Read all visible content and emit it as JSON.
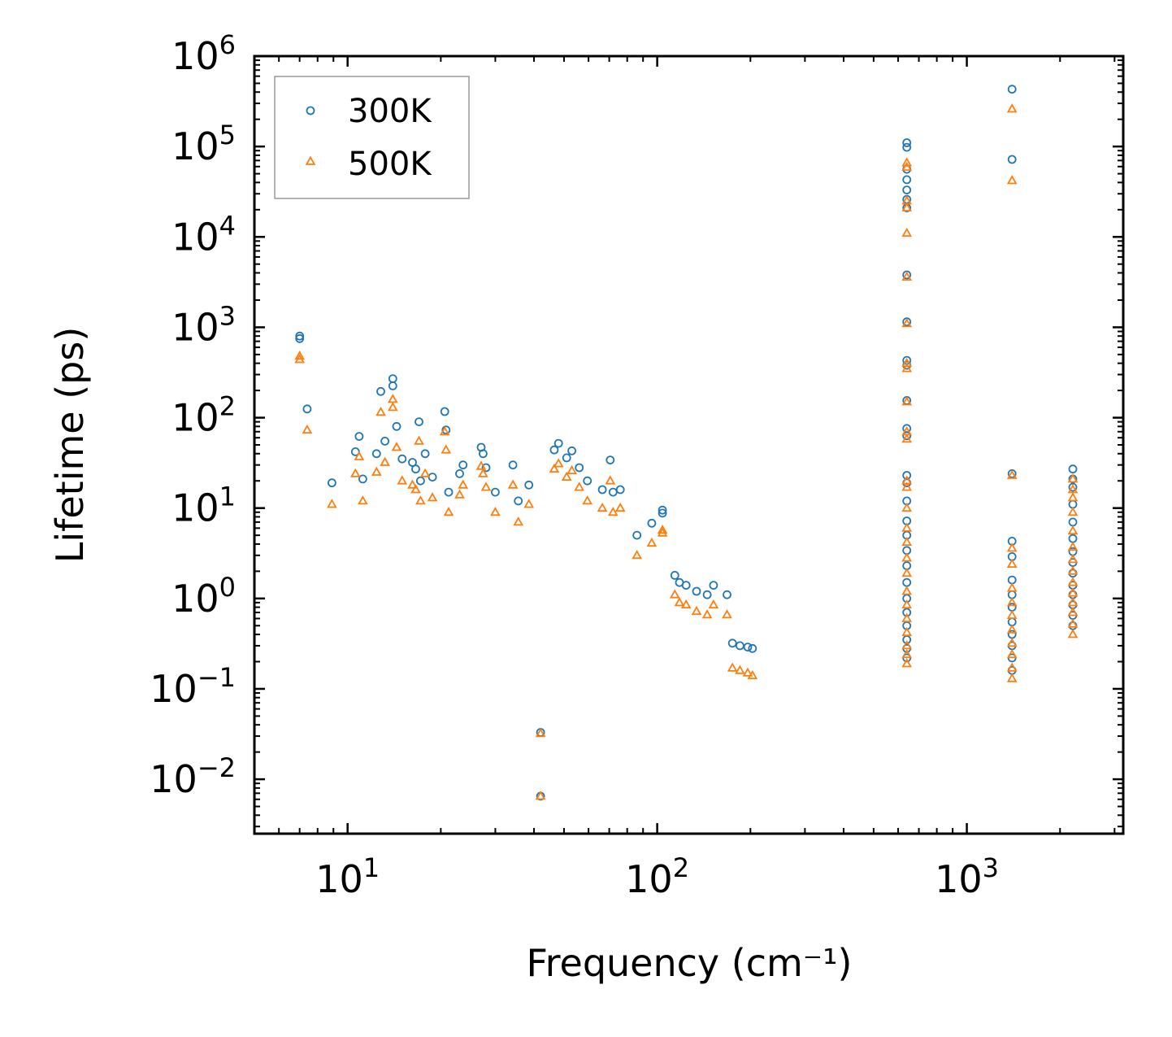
{
  "chart_data": {
    "type": "scatter",
    "xscale": "log",
    "yscale": "log",
    "xlim": [
      5,
      3200
    ],
    "ylim": [
      0.0025,
      1000000
    ],
    "xlabel": "Frequency (cm⁻¹)",
    "ylabel": "Lifetime (ps)",
    "x_ticks": [
      {
        "value": 10,
        "base": "10",
        "exp": "1"
      },
      {
        "value": 100,
        "base": "10",
        "exp": "2"
      },
      {
        "value": 1000,
        "base": "10",
        "exp": "3"
      }
    ],
    "y_ticks": [
      {
        "value": 0.01,
        "base": "10",
        "exp": "−2"
      },
      {
        "value": 0.1,
        "base": "10",
        "exp": "−1"
      },
      {
        "value": 1,
        "base": "10",
        "exp": "0"
      },
      {
        "value": 10,
        "base": "10",
        "exp": "1"
      },
      {
        "value": 100,
        "base": "10",
        "exp": "2"
      },
      {
        "value": 1000,
        "base": "10",
        "exp": "3"
      },
      {
        "value": 10000,
        "base": "10",
        "exp": "4"
      },
      {
        "value": 100000,
        "base": "10",
        "exp": "5"
      },
      {
        "value": 1000000,
        "base": "10",
        "exp": "6"
      }
    ],
    "legend": {
      "placement": "upper-left"
    },
    "series": [
      {
        "name": "300K",
        "marker": "circle",
        "color": "#1f77b4",
        "points": [
          [
            7.0,
            800
          ],
          [
            7.0,
            750
          ],
          [
            7.4,
            125
          ],
          [
            8.9,
            19
          ],
          [
            10.6,
            42
          ],
          [
            10.9,
            62
          ],
          [
            11.2,
            21
          ],
          [
            12.4,
            40
          ],
          [
            12.8,
            195
          ],
          [
            13.2,
            55
          ],
          [
            14.0,
            270
          ],
          [
            14.0,
            225
          ],
          [
            14.4,
            80
          ],
          [
            15.0,
            35
          ],
          [
            16.2,
            32
          ],
          [
            16.6,
            27
          ],
          [
            17.0,
            90
          ],
          [
            17.2,
            20
          ],
          [
            17.8,
            40
          ],
          [
            18.8,
            22
          ],
          [
            20.6,
            117
          ],
          [
            20.8,
            73
          ],
          [
            21.2,
            15
          ],
          [
            23.0,
            24
          ],
          [
            23.6,
            30
          ],
          [
            27.0,
            47
          ],
          [
            27.4,
            40
          ],
          [
            28.0,
            28
          ],
          [
            30.0,
            15
          ],
          [
            34.2,
            30
          ],
          [
            35.6,
            12
          ],
          [
            38.5,
            18
          ],
          [
            42.0,
            0.033
          ],
          [
            42.0,
            0.0065
          ],
          [
            46.5,
            44
          ],
          [
            48.0,
            52
          ],
          [
            51.0,
            36
          ],
          [
            53.0,
            43
          ],
          [
            56.0,
            28
          ],
          [
            59.5,
            20
          ],
          [
            66.5,
            16
          ],
          [
            70.5,
            34
          ],
          [
            72.0,
            15
          ],
          [
            76.0,
            16
          ],
          [
            86.0,
            5
          ],
          [
            96.0,
            6.8
          ],
          [
            104.0,
            9.5
          ],
          [
            104.0,
            8.8
          ],
          [
            114.0,
            1.8
          ],
          [
            118.0,
            1.5
          ],
          [
            124.0,
            1.4
          ],
          [
            134.0,
            1.2
          ],
          [
            145.0,
            1.1
          ],
          [
            152.0,
            1.4
          ],
          [
            168.0,
            1.1
          ],
          [
            175.0,
            0.32
          ],
          [
            185.0,
            0.3
          ],
          [
            196.0,
            0.29
          ],
          [
            203.0,
            0.28
          ],
          [
            640.0,
            110000
          ],
          [
            640.0,
            98000
          ],
          [
            640.0,
            56000
          ],
          [
            640.0,
            43000
          ],
          [
            640.0,
            33000
          ],
          [
            640.0,
            26000
          ],
          [
            640.0,
            21000
          ],
          [
            640.0,
            3800
          ],
          [
            640.0,
            1150
          ],
          [
            640.0,
            430
          ],
          [
            640.0,
            380
          ],
          [
            640.0,
            155
          ],
          [
            640.0,
            76
          ],
          [
            640.0,
            63
          ],
          [
            640.0,
            23
          ],
          [
            640.0,
            19
          ],
          [
            640.0,
            12
          ],
          [
            640.0,
            7.2
          ],
          [
            640.0,
            5
          ],
          [
            640.0,
            3.4
          ],
          [
            640.0,
            2.3
          ],
          [
            640.0,
            1.5
          ],
          [
            640.0,
            1
          ],
          [
            640.0,
            0.7
          ],
          [
            640.0,
            0.5
          ],
          [
            640.0,
            0.35
          ],
          [
            640.0,
            0.28
          ],
          [
            640.0,
            0.22
          ],
          [
            1400.0,
            430000
          ],
          [
            1400.0,
            72000
          ],
          [
            1400.0,
            24
          ],
          [
            1400.0,
            4.3
          ],
          [
            1400.0,
            2.9
          ],
          [
            1400.0,
            1.6
          ],
          [
            1400.0,
            1.1
          ],
          [
            1400.0,
            0.8
          ],
          [
            1400.0,
            0.55
          ],
          [
            1400.0,
            0.4
          ],
          [
            1400.0,
            0.3
          ],
          [
            1400.0,
            0.22
          ],
          [
            1400.0,
            0.16
          ],
          [
            2200.0,
            27
          ],
          [
            2200.0,
            21
          ],
          [
            2200.0,
            17
          ],
          [
            2200.0,
            11
          ],
          [
            2200.0,
            7
          ],
          [
            2200.0,
            4.6
          ],
          [
            2200.0,
            3.3
          ],
          [
            2200.0,
            2.5
          ],
          [
            2200.0,
            1.9
          ],
          [
            2200.0,
            1.4
          ],
          [
            2200.0,
            1.1
          ],
          [
            2200.0,
            0.85
          ],
          [
            2200.0,
            0.65
          ],
          [
            2200.0,
            0.5
          ]
        ]
      },
      {
        "name": "500K",
        "marker": "triangle",
        "color": "#ff7f0e",
        "points": [
          [
            7.0,
            480
          ],
          [
            7.0,
            440
          ],
          [
            7.4,
            73
          ],
          [
            8.9,
            11
          ],
          [
            10.6,
            24
          ],
          [
            10.9,
            37
          ],
          [
            11.2,
            12
          ],
          [
            12.4,
            25
          ],
          [
            12.8,
            115
          ],
          [
            13.2,
            32
          ],
          [
            14.0,
            160
          ],
          [
            14.0,
            130
          ],
          [
            14.4,
            47
          ],
          [
            15.0,
            20
          ],
          [
            16.2,
            18
          ],
          [
            16.6,
            16
          ],
          [
            17.0,
            55
          ],
          [
            17.2,
            12
          ],
          [
            17.8,
            24
          ],
          [
            18.8,
            13
          ],
          [
            20.6,
            70
          ],
          [
            20.8,
            44
          ],
          [
            21.2,
            9
          ],
          [
            23.0,
            14
          ],
          [
            23.6,
            18
          ],
          [
            27.0,
            29
          ],
          [
            27.4,
            24
          ],
          [
            28.0,
            17
          ],
          [
            30.0,
            9
          ],
          [
            34.2,
            18
          ],
          [
            35.6,
            7
          ],
          [
            38.5,
            11
          ],
          [
            42.0,
            0.032
          ],
          [
            42.0,
            0.0065
          ],
          [
            46.5,
            27
          ],
          [
            48.0,
            31
          ],
          [
            51.0,
            22
          ],
          [
            53.0,
            26
          ],
          [
            56.0,
            17
          ],
          [
            59.5,
            12
          ],
          [
            66.5,
            10
          ],
          [
            70.5,
            20
          ],
          [
            72.0,
            9
          ],
          [
            76.0,
            10
          ],
          [
            86.0,
            3
          ],
          [
            96.0,
            4.1
          ],
          [
            104.0,
            5.7
          ],
          [
            104.0,
            5.3
          ],
          [
            114.0,
            1.1
          ],
          [
            118.0,
            0.9
          ],
          [
            124.0,
            0.85
          ],
          [
            134.0,
            0.72
          ],
          [
            145.0,
            0.66
          ],
          [
            152.0,
            0.85
          ],
          [
            168.0,
            0.66
          ],
          [
            175.0,
            0.17
          ],
          [
            185.0,
            0.16
          ],
          [
            196.0,
            0.15
          ],
          [
            203.0,
            0.14
          ],
          [
            640.0,
            66000
          ],
          [
            640.0,
            59000
          ],
          [
            640.0,
            25000
          ],
          [
            640.0,
            21000
          ],
          [
            640.0,
            11000
          ],
          [
            640.0,
            3600
          ],
          [
            640.0,
            1100
          ],
          [
            640.0,
            400
          ],
          [
            640.0,
            350
          ],
          [
            640.0,
            150
          ],
          [
            640.0,
            70
          ],
          [
            640.0,
            58
          ],
          [
            640.0,
            20
          ],
          [
            640.0,
            17
          ],
          [
            640.0,
            10
          ],
          [
            640.0,
            6
          ],
          [
            640.0,
            4.2
          ],
          [
            640.0,
            2.8
          ],
          [
            640.0,
            1.9
          ],
          [
            640.0,
            1.2
          ],
          [
            640.0,
            0.85
          ],
          [
            640.0,
            0.6
          ],
          [
            640.0,
            0.42
          ],
          [
            640.0,
            0.3
          ],
          [
            640.0,
            0.24
          ],
          [
            640.0,
            0.19
          ],
          [
            1400.0,
            260000
          ],
          [
            1400.0,
            42000
          ],
          [
            1400.0,
            23
          ],
          [
            1400.0,
            3.6
          ],
          [
            1400.0,
            2.4
          ],
          [
            1400.0,
            1.3
          ],
          [
            1400.0,
            0.9
          ],
          [
            1400.0,
            0.65
          ],
          [
            1400.0,
            0.45
          ],
          [
            1400.0,
            0.32
          ],
          [
            1400.0,
            0.24
          ],
          [
            1400.0,
            0.17
          ],
          [
            1400.0,
            0.13
          ],
          [
            2200.0,
            21
          ],
          [
            2200.0,
            16
          ],
          [
            2200.0,
            13
          ],
          [
            2200.0,
            9
          ],
          [
            2200.0,
            5.6
          ],
          [
            2200.0,
            3.7
          ],
          [
            2200.0,
            2.7
          ],
          [
            2200.0,
            2
          ],
          [
            2200.0,
            1.5
          ],
          [
            2200.0,
            1.15
          ],
          [
            2200.0,
            0.9
          ],
          [
            2200.0,
            0.7
          ],
          [
            2200.0,
            0.52
          ],
          [
            2200.0,
            0.4
          ]
        ]
      }
    ]
  }
}
